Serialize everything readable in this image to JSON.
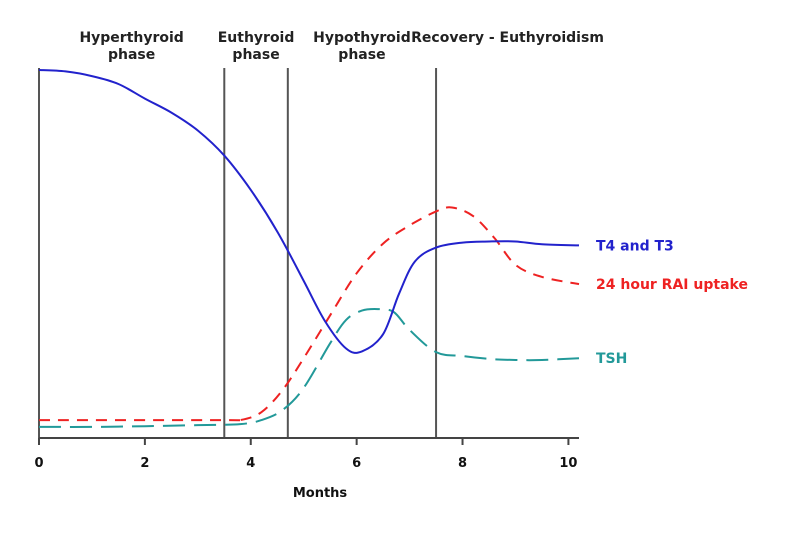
{
  "chart_data": {
    "type": "line",
    "title": "",
    "xlabel": "Months",
    "ylabel": "",
    "xlim": [
      0,
      10.2
    ],
    "ylim": [
      0,
      100
    ],
    "x_ticks": [
      "0",
      "2",
      "4",
      "6",
      "8",
      "10"
    ],
    "phases": [
      {
        "label_lines": [
          "Hyperthyroid",
          "phase"
        ],
        "start": 0,
        "end": 3.5
      },
      {
        "label_lines": [
          "Euthyroid",
          "phase"
        ],
        "start": 3.5,
        "end": 4.7
      },
      {
        "label_lines": [
          "Hypothyroid",
          "phase"
        ],
        "start": 4.7,
        "end": 7.5
      },
      {
        "label_lines": [
          "Recovery - Euthyroidism"
        ],
        "start": 7.5,
        "end": 10.2
      }
    ],
    "series": [
      {
        "name": "T4 and T3",
        "color": "#2222cc",
        "dash": "solid",
        "x": [
          0,
          0.5,
          1,
          1.5,
          2,
          2.5,
          3,
          3.5,
          4,
          4.5,
          5,
          5.4,
          5.8,
          6.1,
          6.5,
          6.8,
          7.1,
          7.5,
          8,
          8.5,
          9,
          9.5,
          10.2
        ],
        "y": [
          100,
          99.6,
          98.3,
          96.1,
          92,
          88.1,
          83.1,
          76.1,
          66.5,
          54.9,
          41.1,
          29.9,
          22.2,
          21.4,
          26.2,
          37.5,
          46.5,
          50.4,
          51.8,
          52.1,
          52.1,
          51.3,
          51
        ]
      },
      {
        "name": "24 hour RAI uptake",
        "color": "#ee2222",
        "dash": "dashed",
        "x": [
          0,
          3.5,
          3.8,
          4.2,
          4.6,
          5,
          5.5,
          6,
          6.5,
          7,
          7.5,
          7.8,
          8.2,
          8.6,
          9,
          9.5,
          10.2
        ],
        "y": [
          2.2,
          2.2,
          2.2,
          4.4,
          10.6,
          19.5,
          31.5,
          43.2,
          51.5,
          56.6,
          60.5,
          61.6,
          59.2,
          53.1,
          45.6,
          42.2,
          40.2
        ]
      },
      {
        "name": "TSH",
        "color": "#229999",
        "dash": "longdash",
        "x": [
          0,
          1,
          2,
          3,
          3.8,
          4.2,
          4.6,
          5,
          5.5,
          5.8,
          6.1,
          6.4,
          6.7,
          7,
          7.5,
          8,
          8.5,
          9,
          9.5,
          10.2
        ],
        "y": [
          0.3,
          0.3,
          0.5,
          0.8,
          1.1,
          2.2,
          5,
          11.2,
          23.7,
          30.2,
          32.8,
          33.2,
          32.4,
          27.4,
          21.2,
          20.1,
          19.3,
          19,
          19,
          19.5
        ]
      }
    ]
  }
}
